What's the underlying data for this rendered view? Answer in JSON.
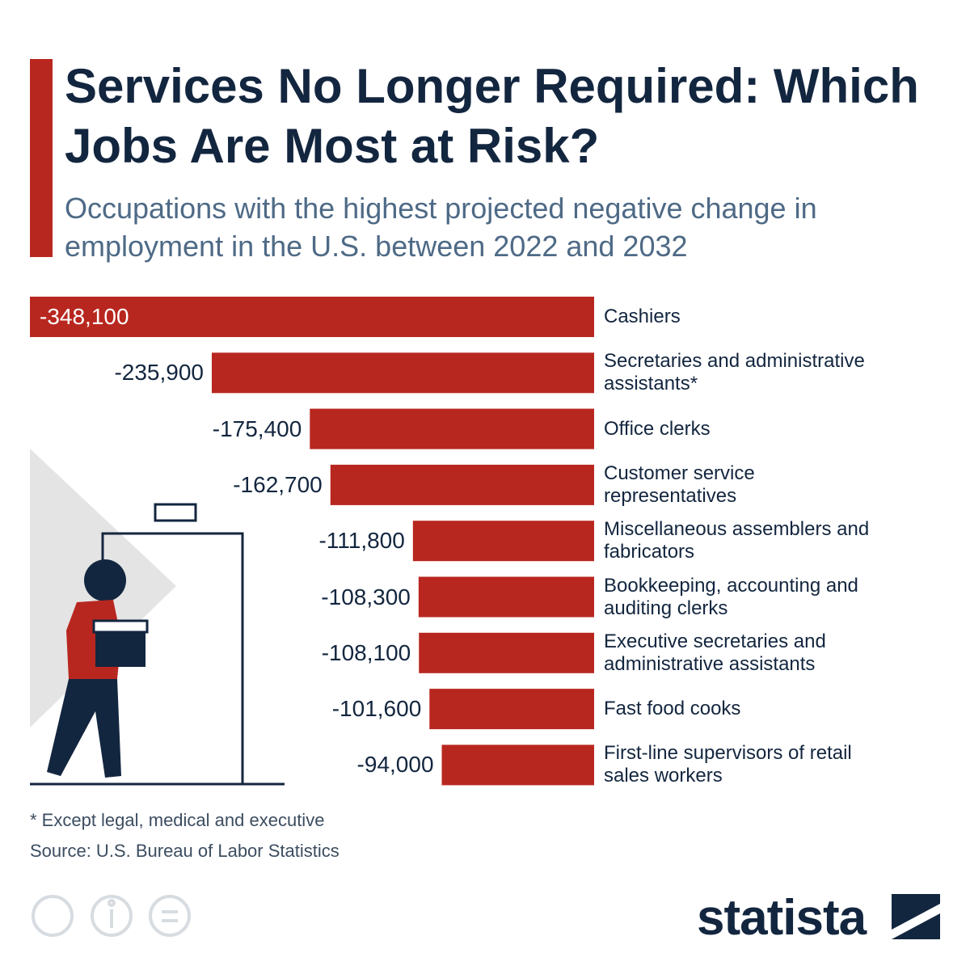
{
  "chart_data": {
    "type": "bar",
    "title": "Services No Longer Required: Which Jobs Are Most at Risk?",
    "subtitle": "Occupations with the highest projected negative change in employment in the U.S. between 2022 and 2032",
    "categories": [
      "Cashiers",
      "Secretaries and administrative assistants*",
      "Office clerks",
      "Customer service representatives",
      "Miscellaneous assemblers and fabricators",
      "Bookkeeping, accounting and auditing clerks",
      "Executive secretaries and administrative assistants",
      "Fast food cooks",
      "First-line supervisors of retail sales workers"
    ],
    "values": [
      -348100,
      -235900,
      -175400,
      -162700,
      -111800,
      -108300,
      -108100,
      -101600,
      -94000
    ],
    "value_labels": [
      "-348,100",
      "-235,900",
      "-175,400",
      "-162,700",
      "-111,800",
      "-108,300",
      "-108,100",
      "-101,600",
      "-94,000"
    ],
    "color": "#b8271f",
    "note": "* Except legal, medical and executive",
    "source": "Source: U.S. Bureau of Labor Statistics"
  },
  "logo": "statista"
}
